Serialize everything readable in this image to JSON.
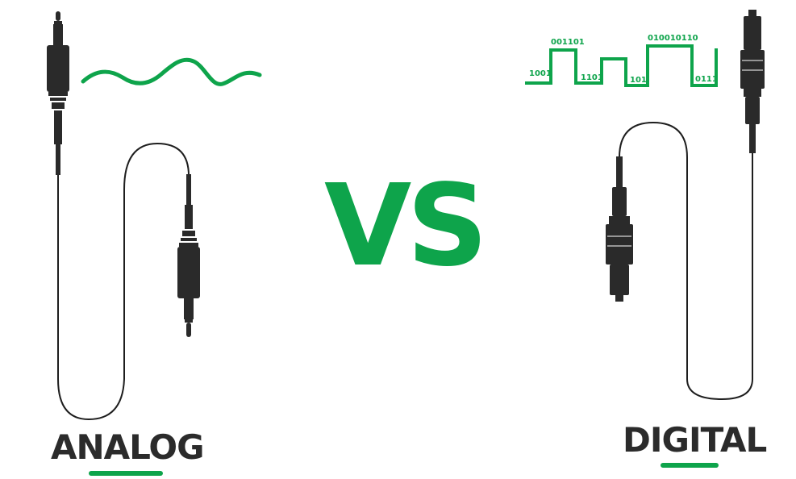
{
  "vs_text": "VS",
  "analog": {
    "label": "ANALOG",
    "signal_icon": "sine-wave-icon",
    "connector_icon": "3.5mm-audio-jack-icon"
  },
  "digital": {
    "label": "DIGITAL",
    "signal_icon": "square-wave-icon",
    "connector_icon": "optical-toslink-connector-icon",
    "bit_labels": [
      "001101",
      "010010110",
      "1001",
      "1101",
      "101",
      "0111"
    ]
  },
  "colors": {
    "accent": "#0ea44b",
    "cable": "#1e1e1e",
    "connector": "#2a2a2a",
    "text": "#2b2b2b"
  }
}
